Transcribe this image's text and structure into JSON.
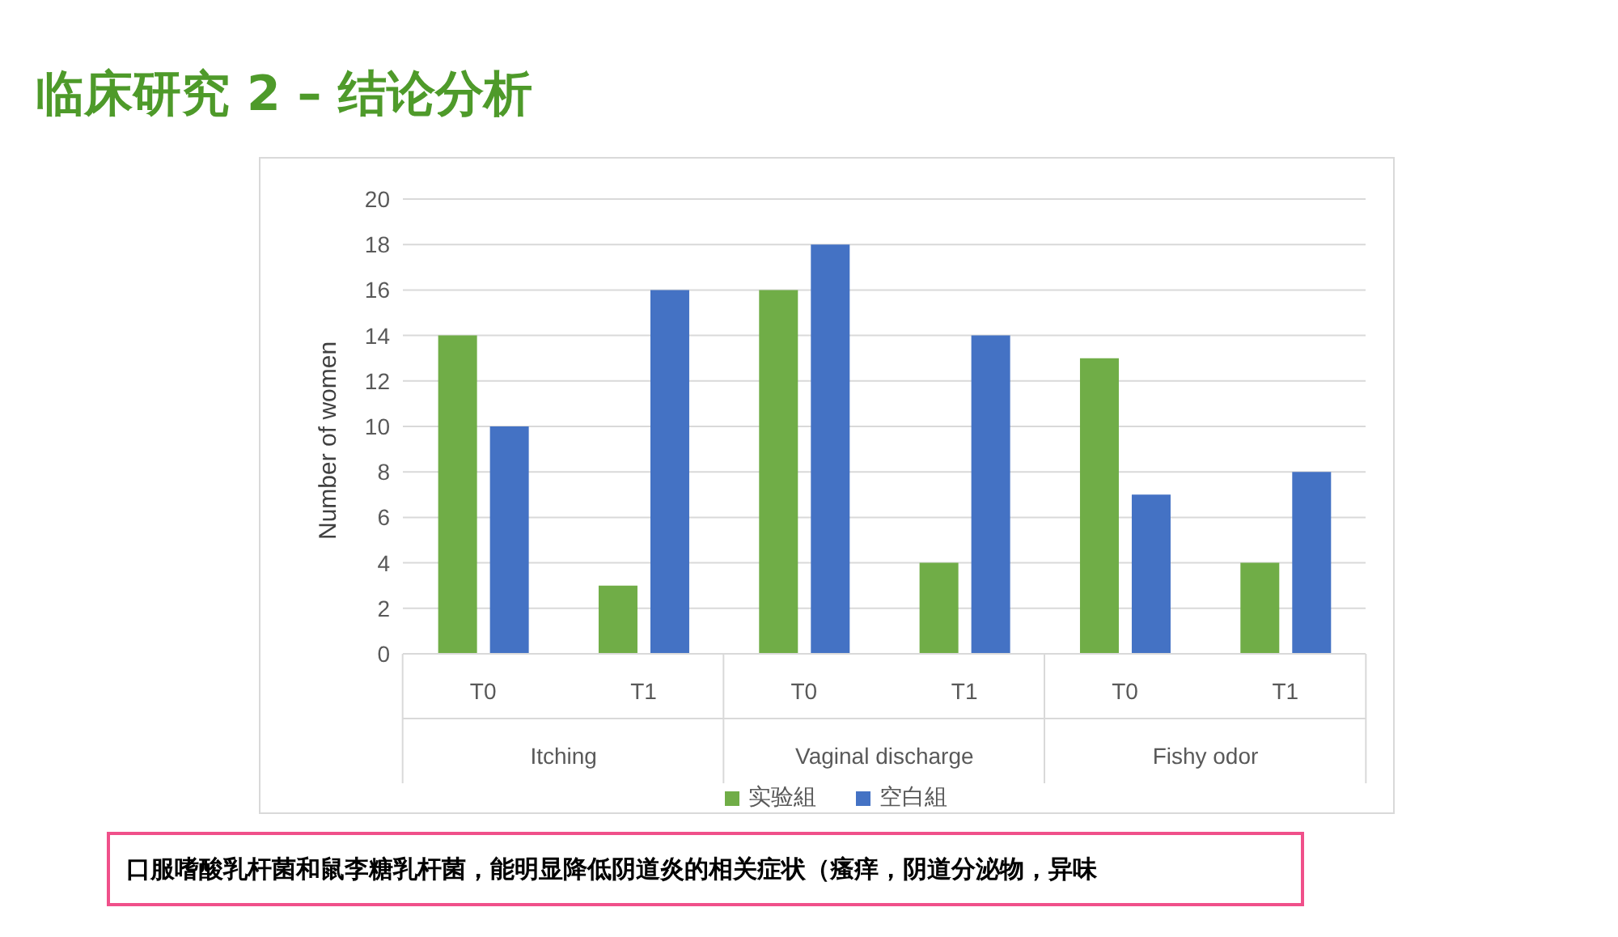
{
  "chart_data": {
    "type": "bar",
    "title": "临床研究 2 – 结论分析",
    "ylabel": "Number of women",
    "categories": [
      "T0",
      "T1",
      "T0",
      "T1",
      "T0",
      "T1"
    ],
    "series": [
      {
        "name": "实验組",
        "color": "#70ad47",
        "values": [
          14,
          3,
          16,
          4,
          13,
          4
        ]
      },
      {
        "name": "空白組",
        "color": "#4472c4",
        "values": [
          10,
          16,
          18,
          14,
          7,
          8
        ]
      }
    ],
    "ylim": [
      0,
      20
    ],
    "yticks": [
      0,
      2,
      4,
      6,
      8,
      10,
      12,
      14,
      16,
      18,
      20
    ],
    "grid": "y",
    "legend": "bottom",
    "annotations": [
      "Itching",
      "Vaginal discharge",
      "Fishy odor",
      "口服嗜酸乳杆菌和鼠李糖乳杆菌，能明显降低阴道炎的相关症状（瘙痒，阴道分泌物，异味"
    ]
  }
}
